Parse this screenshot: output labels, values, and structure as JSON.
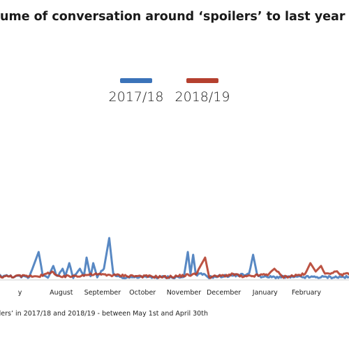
{
  "title": "lume of conversation around ‘spoilers’ to last year",
  "footnote": "ilers’ in 2017/18 and 2018/19 - between May 1st and April 30th",
  "legend": [
    {
      "label": "2017/18",
      "color": "#3b73b9"
    },
    {
      "label": "2018/19",
      "color": "#b5402f"
    }
  ],
  "chart_data": {
    "type": "line",
    "x_axis": {
      "type": "date",
      "range": [
        "2018-06-16",
        "2019-03-05"
      ]
    },
    "y_axis": {
      "range": [
        0,
        100
      ],
      "visible": false
    },
    "tick_labels": [
      {
        "label": "y",
        "date": "2018-07-01"
      },
      {
        "label": "August",
        "date": "2018-08-01"
      },
      {
        "label": "September",
        "date": "2018-09-01"
      },
      {
        "label": "October",
        "date": "2018-10-01"
      },
      {
        "label": "November",
        "date": "2018-11-01"
      },
      {
        "label": "December",
        "date": "2018-12-01"
      },
      {
        "label": "January",
        "date": "2019-01-01"
      },
      {
        "label": "February",
        "date": "2019-02-01"
      }
    ],
    "series": [
      {
        "name": "2017/18",
        "color": "#3b73b9",
        "baseline": 1.5,
        "points": [
          [
            "2018-06-16",
            1.5
          ],
          [
            "2018-07-08",
            1
          ],
          [
            "2018-07-15",
            10
          ],
          [
            "2018-07-18",
            2
          ],
          [
            "2018-07-22",
            1
          ],
          [
            "2018-07-26",
            5
          ],
          [
            "2018-07-29",
            1
          ],
          [
            "2018-08-02",
            4
          ],
          [
            "2018-08-04",
            1
          ],
          [
            "2018-08-07",
            6
          ],
          [
            "2018-08-10",
            1
          ],
          [
            "2018-08-15",
            4
          ],
          [
            "2018-08-18",
            1
          ],
          [
            "2018-08-20",
            8
          ],
          [
            "2018-08-23",
            1
          ],
          [
            "2018-08-25",
            6
          ],
          [
            "2018-08-28",
            1
          ],
          [
            "2018-09-02",
            4
          ],
          [
            "2018-09-06",
            15
          ],
          [
            "2018-09-09",
            2
          ],
          [
            "2018-09-15",
            1
          ],
          [
            "2018-11-01",
            1
          ],
          [
            "2018-11-04",
            10
          ],
          [
            "2018-11-06",
            2
          ],
          [
            "2018-11-08",
            9
          ],
          [
            "2018-11-10",
            2
          ],
          [
            "2018-11-15",
            2
          ],
          [
            "2018-11-20",
            1
          ],
          [
            "2018-12-20",
            2
          ],
          [
            "2018-12-23",
            9
          ],
          [
            "2018-12-26",
            2
          ],
          [
            "2018-12-30",
            1
          ],
          [
            "2019-03-05",
            1
          ]
        ]
      },
      {
        "name": "2018/19",
        "color": "#b5402f",
        "baseline": 1.2,
        "points": [
          [
            "2018-06-16",
            1.2
          ],
          [
            "2018-07-18",
            1.5
          ],
          [
            "2018-07-25",
            3
          ],
          [
            "2018-07-30",
            1
          ],
          [
            "2018-08-26",
            2
          ],
          [
            "2018-09-20",
            1.5
          ],
          [
            "2018-10-20",
            1
          ],
          [
            "2018-11-10",
            2
          ],
          [
            "2018-11-17",
            8
          ],
          [
            "2018-11-20",
            1
          ],
          [
            "2018-12-10",
            2
          ],
          [
            "2018-12-15",
            1
          ],
          [
            "2019-01-03",
            2
          ],
          [
            "2019-01-08",
            4
          ],
          [
            "2019-01-14",
            1
          ],
          [
            "2019-01-31",
            2
          ],
          [
            "2019-02-04",
            6
          ],
          [
            "2019-02-08",
            3
          ],
          [
            "2019-02-12",
            5
          ],
          [
            "2019-02-15",
            2
          ],
          [
            "2019-02-22",
            3
          ],
          [
            "2019-02-28",
            2
          ],
          [
            "2019-03-05",
            2
          ]
        ]
      }
    ],
    "legend_position": "top-center",
    "grid": false
  }
}
